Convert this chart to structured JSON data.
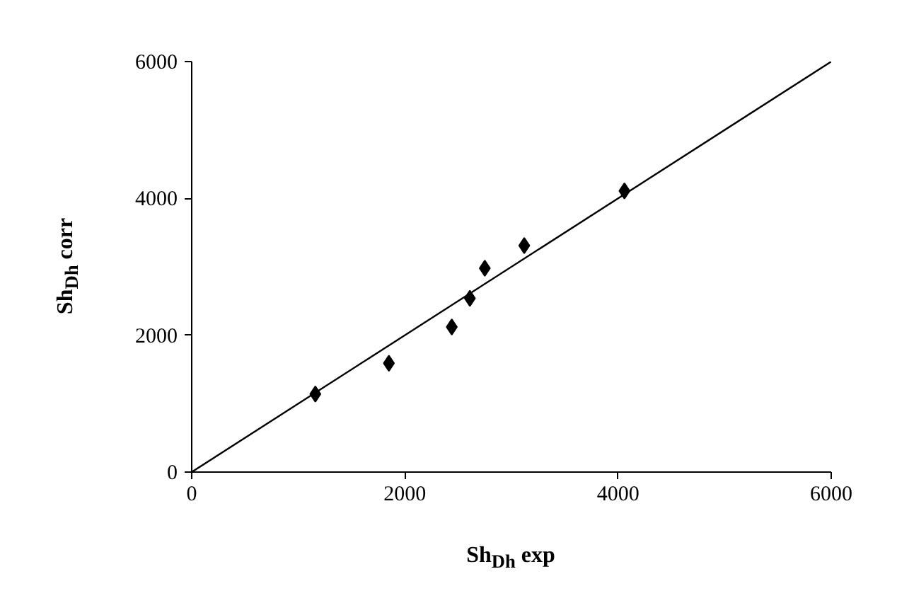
{
  "chart_data": {
    "type": "scatter",
    "xlabel": "Sh$_{Dh}$ exp",
    "ylabel": "Sh$_{Dh}$ corr",
    "x": [
      1160,
      1850,
      2440,
      2610,
      2750,
      3120,
      4060
    ],
    "series": [
      {
        "color": "#000000",
        "marker": "diamond",
        "values": [
          1140,
          1590,
          2120,
          2540,
          2980,
          3310,
          4110
        ]
      },
      {
        "type": "line",
        "color": "#000000",
        "marker": "none",
        "line_style": "solid",
        "x": [
          0,
          6000
        ],
        "values": [
          0,
          6000
        ]
      }
    ],
    "xlim": [
      0,
      6000
    ],
    "ylim": [
      0,
      6000
    ],
    "xticks": [
      0,
      2000,
      4000,
      6000
    ],
    "yticks": [
      0,
      2000,
      4000,
      6000
    ],
    "grid": false
  }
}
